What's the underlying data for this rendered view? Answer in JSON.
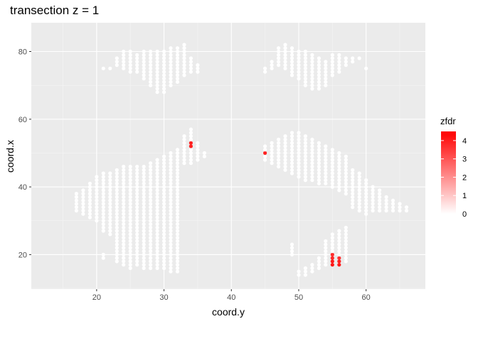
{
  "chart_data": {
    "type": "scatter",
    "title": "transection z = 1",
    "xlabel": "coord.y",
    "ylabel": "coord.x",
    "xlim": [
      10.3,
      68.8
    ],
    "ylim": [
      9.8,
      88.5
    ],
    "xticks": [
      20,
      30,
      40,
      50,
      60
    ],
    "yticks": [
      20,
      40,
      60,
      80
    ],
    "grid": true,
    "legend": {
      "title": "zfdr",
      "position": "right",
      "type": "colorbar",
      "range": [
        0,
        4.5
      ],
      "ticks": [
        0,
        1,
        2,
        3,
        4
      ],
      "low_color": "#ffffff",
      "high_color": "#ff0000"
    },
    "columns": [
      {
        "x": 17,
        "y": [
          33,
          38
        ]
      },
      {
        "x": 18,
        "y": [
          32,
          39
        ]
      },
      {
        "x": 19,
        "y": [
          31,
          41
        ]
      },
      {
        "x": 20,
        "y": [
          30,
          43
        ]
      },
      {
        "x": 21,
        "y": [
          27,
          44
        ],
        "extra": [
          75
        ]
      },
      {
        "x": 22,
        "y": [
          26,
          44
        ],
        "extra": [
          75
        ]
      },
      {
        "x": 23,
        "y": [
          25,
          45
        ],
        "extra": [
          76,
          77,
          78
        ]
      },
      {
        "x": 24,
        "y": [
          23,
          46
        ],
        "extra": [
          75,
          76,
          77,
          78,
          79,
          80
        ]
      },
      {
        "x": 25,
        "y": [
          22,
          46
        ],
        "extra": [
          74,
          75,
          76,
          77,
          78,
          79,
          80
        ]
      },
      {
        "x": 26,
        "y": [
          21,
          46
        ],
        "extra": [
          74,
          75,
          76,
          77,
          78,
          79
        ]
      },
      {
        "x": 27,
        "y": [
          16,
          46
        ],
        "extra": [
          75,
          76,
          77,
          78,
          79,
          80
        ]
      },
      {
        "x": 28,
        "y": [
          16,
          47
        ],
        "extra": [
          73,
          80
        ]
      },
      {
        "x": 29,
        "y": [
          16,
          48
        ],
        "extra": [
          68,
          80
        ]
      },
      {
        "x": 30,
        "y": [
          16,
          49
        ],
        "extra": [
          68,
          80
        ]
      },
      {
        "x": 31,
        "y": [
          15,
          50
        ],
        "extra": [
          70,
          81
        ]
      },
      {
        "x": 32,
        "y": [
          15,
          51
        ],
        "extra": [
          71,
          81
        ]
      },
      {
        "x": 33,
        "y": [
          47,
          55
        ],
        "extra": [
          73,
          78,
          82
        ]
      },
      {
        "x": 34,
        "y": [
          47,
          57
        ],
        "extra": [
          74,
          77
        ]
      },
      {
        "x": 35,
        "y": [
          48,
          53
        ],
        "extra": [
          75
        ]
      },
      {
        "x": 36,
        "y": [
          49,
          50
        ]
      },
      {
        "x": 45,
        "y": [
          48,
          52
        ],
        "extra": [
          75
        ]
      },
      {
        "x": 46,
        "y": [
          47,
          53
        ],
        "extra": [
          76,
          77
        ]
      },
      {
        "x": 47,
        "y": [
          46,
          54
        ],
        "extra": [
          77,
          81
        ]
      },
      {
        "x": 48,
        "y": [
          45,
          55
        ],
        "extra": [
          78,
          82
        ]
      },
      {
        "x": 49,
        "y": [
          44,
          56
        ],
        "extra": [
          76,
          81
        ]
      },
      {
        "x": 50,
        "y": [
          43,
          56
        ],
        "extra": [
          74,
          80
        ]
      },
      {
        "x": 51,
        "y": [
          42,
          55
        ],
        "extra": [
          72,
          80
        ]
      },
      {
        "x": 52,
        "y": [
          42,
          54
        ],
        "extra": [
          69,
          79
        ]
      },
      {
        "x": 53,
        "y": [
          41,
          53
        ],
        "extra": [
          69,
          78
        ]
      },
      {
        "x": 54,
        "y": [
          41,
          52
        ],
        "extra": [
          70,
          77
        ]
      },
      {
        "x": 55,
        "y": [
          40,
          51
        ],
        "extra": [
          73,
          79
        ]
      },
      {
        "x": 56,
        "y": [
          39,
          50
        ],
        "extra": [
          74,
          77,
          78,
          79
        ]
      },
      {
        "x": 57,
        "y": [
          38,
          49
        ],
        "extra": [
          76,
          77,
          78
        ]
      },
      {
        "x": 58,
        "y": [
          34,
          45
        ],
        "extra": [
          77,
          78
        ]
      },
      {
        "x": 59,
        "y": [
          33,
          44
        ],
        "extra": [
          78
        ]
      },
      {
        "x": 60,
        "y": [
          32,
          42
        ],
        "extra": [
          75
        ]
      },
      {
        "x": 61,
        "y": [
          33,
          40
        ]
      },
      {
        "x": 62,
        "y": [
          33,
          39
        ]
      },
      {
        "x": 63,
        "y": [
          33,
          37
        ]
      },
      {
        "x": 64,
        "y": [
          33,
          36
        ]
      },
      {
        "x": 65,
        "y": [
          33,
          35
        ]
      },
      {
        "x": 66,
        "y": [
          33,
          34
        ]
      }
    ],
    "lower_columns": [
      {
        "x": 21,
        "y": [
          19,
          20
        ]
      },
      {
        "x": 23,
        "y": [
          18,
          27
        ]
      },
      {
        "x": 24,
        "y": [
          17,
          26
        ]
      },
      {
        "x": 25,
        "y": [
          16,
          25
        ]
      },
      {
        "x": 26,
        "y": [
          17,
          24
        ]
      },
      {
        "x": 49,
        "y": [
          20,
          23
        ]
      },
      {
        "x": 50,
        "y": [
          14,
          15
        ]
      },
      {
        "x": 51,
        "y": [
          14,
          16
        ]
      },
      {
        "x": 52,
        "y": [
          15,
          17
        ]
      },
      {
        "x": 53,
        "y": [
          16,
          19
        ]
      },
      {
        "x": 54,
        "y": [
          17,
          24
        ]
      },
      {
        "x": 55,
        "y": [
          17,
          26
        ]
      },
      {
        "x": 56,
        "y": [
          17,
          27
        ]
      },
      {
        "x": 57,
        "y": [
          18,
          28
        ]
      }
    ],
    "highlighted_points": [
      {
        "x": 34,
        "y": 53,
        "zfdr": 3.5
      },
      {
        "x": 34,
        "y": 52,
        "zfdr": 3.5
      },
      {
        "x": 45,
        "y": 50,
        "zfdr": 3.5
      },
      {
        "x": 55,
        "y": 20,
        "zfdr": 3.2
      },
      {
        "x": 55,
        "y": 19,
        "zfdr": 3.3
      },
      {
        "x": 55,
        "y": 18,
        "zfdr": 3.6
      },
      {
        "x": 55,
        "y": 17,
        "zfdr": 3.8
      },
      {
        "x": 56,
        "y": 19,
        "zfdr": 3.0
      },
      {
        "x": 56,
        "y": 18,
        "zfdr": 3.4
      },
      {
        "x": 56,
        "y": 17,
        "zfdr": 3.6
      }
    ]
  }
}
